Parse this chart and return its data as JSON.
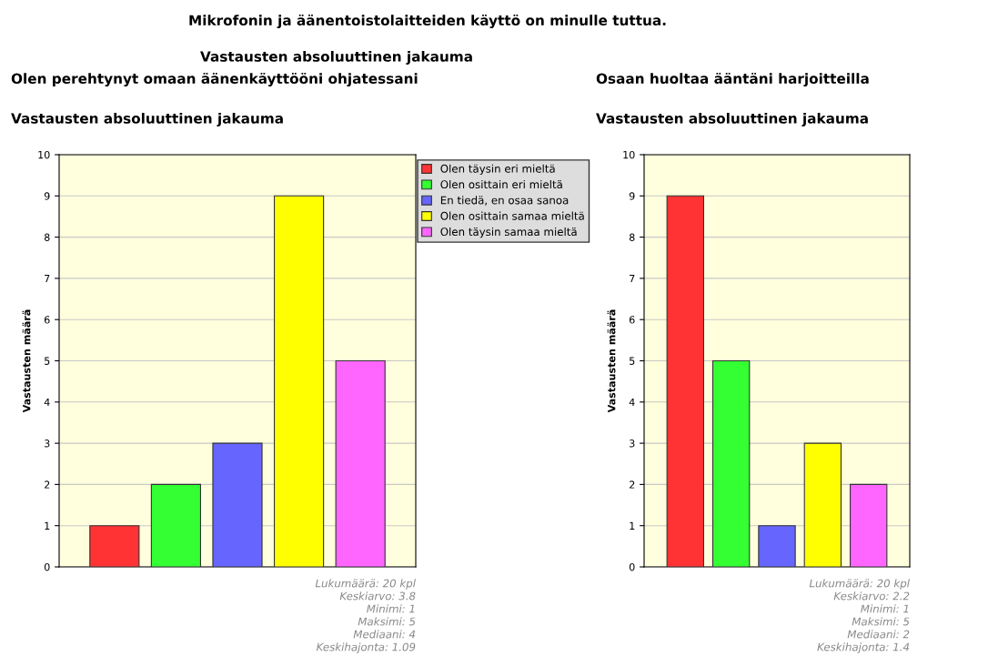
{
  "chart_data": [
    {
      "type": "other",
      "title": "Mikrofonin ja äänentoistolaitteiden käyttö on minulle tuttua.",
      "subtitle": "Vastausten absoluuttinen jakauma"
    },
    {
      "type": "bar",
      "title": "Olen perehtynyt omaan äänenkäyttööni ohjatessani",
      "subtitle": "Vastausten absoluuttinen jakauma",
      "ylabel": "Vastausten määrä",
      "categories": [
        null,
        null,
        null,
        null,
        null
      ],
      "series": [
        {
          "name": "Olen täysin eri mieltä",
          "color": "#ff3333",
          "values": [
            1,
            null,
            null,
            null,
            null
          ]
        },
        {
          "name": "Olen osittain eri mieltä",
          "color": "#33ff33",
          "values": [
            null,
            2,
            null,
            null,
            null
          ]
        },
        {
          "name": "En tiedä, en osaa sanoa",
          "color": "#6666ff",
          "values": [
            null,
            null,
            3,
            null,
            null
          ]
        },
        {
          "name": "Olen osittain samaa mieltä",
          "color": "#ffff00",
          "values": [
            null,
            null,
            null,
            9,
            null
          ]
        },
        {
          "name": "Olen täysin samaa mieltä",
          "color": "#ff66ff",
          "values": [
            null,
            null,
            null,
            null,
            5
          ]
        }
      ],
      "ylim": [
        0,
        10
      ],
      "yticks": [
        0,
        1,
        2,
        3,
        4,
        5,
        6,
        7,
        8,
        9,
        10
      ],
      "grid": "y",
      "legend": "right",
      "tick_labels": "y",
      "annotations": [
        "Lukumäärä: 20 kpl",
        "Keskiarvo: 3.8",
        "Minimi: 1",
        "Maksimi: 5",
        "Mediaani: 4",
        "Keskihajonta: 1.09"
      ]
    },
    {
      "type": "bar",
      "title": "Osaan huoltaa ääntäni harjoitteilla",
      "subtitle": "Vastausten absoluuttinen jakauma",
      "ylabel": "Vastausten määrä",
      "categories": [
        null,
        null,
        null,
        null,
        null
      ],
      "values": [
        9,
        5,
        1,
        3,
        2
      ],
      "colors": [
        "#ff3333",
        "#33ff33",
        "#6666ff",
        "#ffff00",
        "#ff66ff"
      ],
      "ylim": [
        0,
        10
      ],
      "yticks": [
        0,
        1,
        2,
        3,
        4,
        5,
        6,
        7,
        8,
        9,
        10
      ],
      "grid": "y",
      "tick_labels": "y",
      "annotations": [
        "Lukumäärä: 20 kpl",
        "Keskiarvo: 2.2",
        "Minimi: 1",
        "Maksimi: 5",
        "Mediaani: 2",
        "Keskihajonta: 1.4"
      ]
    }
  ]
}
